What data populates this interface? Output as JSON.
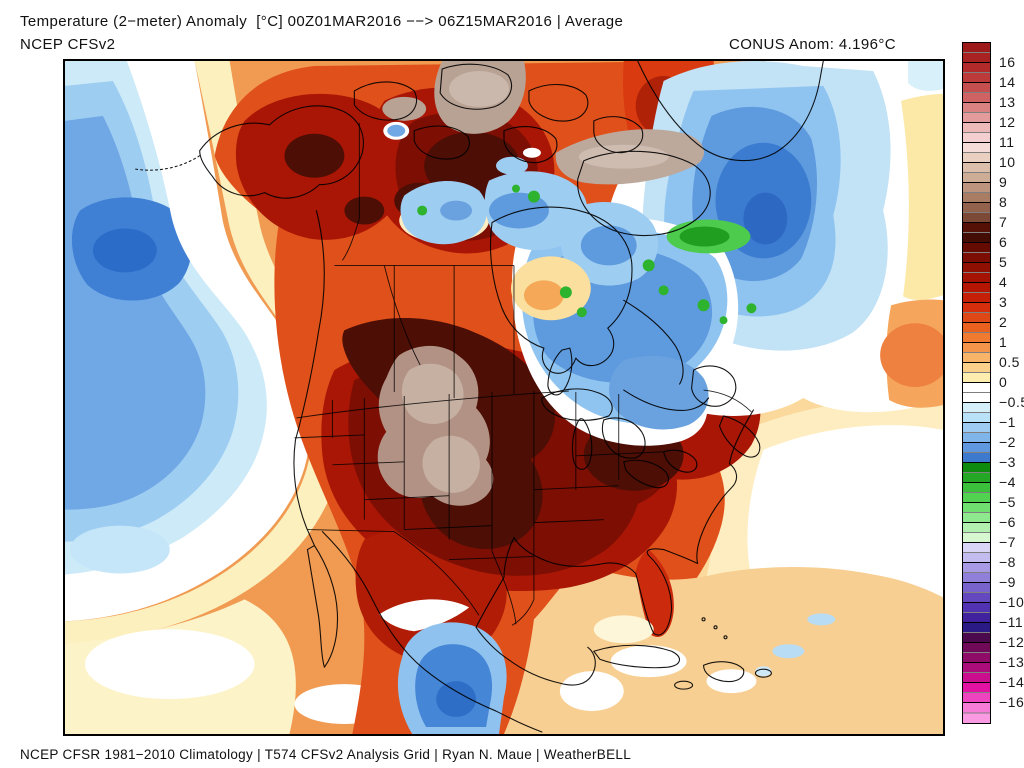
{
  "header": {
    "title": "Temperature (2−meter) Anomaly  [°C] 00Z01MAR2016 −−> 06Z15MAR2016 | Average",
    "model": "NCEP CFSv2",
    "conus_anomaly": "CONUS Anom: 4.196°C"
  },
  "footer": {
    "credits": "NCEP CFSR 1981−2010 Climatology | T574 CFSv2 Analysis Grid | Ryan N. Maue | WeatherBELL"
  },
  "colorbar": {
    "unit": "°C",
    "cells": [
      {
        "label": "16",
        "a": "#9d1a1a",
        "b": "#a82222"
      },
      {
        "label": "14",
        "a": "#b22a2a",
        "b": "#bc3a3a"
      },
      {
        "label": "13",
        "a": "#c54e4e",
        "b": "#cf6363"
      },
      {
        "label": "12",
        "a": "#da8282",
        "b": "#e49b9b"
      },
      {
        "label": "11",
        "a": "#edb9b9",
        "b": "#f3cfcf"
      },
      {
        "label": "10",
        "a": "#f5dcd8",
        "b": "#e9d0c0"
      },
      {
        "label": "9",
        "a": "#dcbfab",
        "b": "#cead97"
      },
      {
        "label": "8",
        "a": "#bd947e",
        "b": "#a97c64"
      },
      {
        "label": "7",
        "a": "#93624c",
        "b": "#7b4936"
      },
      {
        "label": "6",
        "a": "#551106",
        "b": "#430c04"
      },
      {
        "label": "5",
        "a": "#650b02",
        "b": "#7c0d03"
      },
      {
        "label": "4",
        "a": "#8f0f03",
        "b": "#a31203"
      },
      {
        "label": "3",
        "a": "#b51604",
        "b": "#c52007"
      },
      {
        "label": "2",
        "a": "#d42e0c",
        "b": "#de4716"
      },
      {
        "label": "1",
        "a": "#e9601f",
        "b": "#ef7a30"
      },
      {
        "label": "0.5",
        "a": "#f3944a",
        "b": "#f8b468"
      },
      {
        "label": "0",
        "a": "#fbd08a",
        "b": "#fdeeb0"
      },
      {
        "label": "−0.5",
        "a": "#ffffff",
        "b": "#ffffff"
      },
      {
        "label": "−1",
        "a": "#d4effa",
        "b": "#b9e1f7"
      },
      {
        "label": "−2",
        "a": "#9dcbf1",
        "b": "#80b5ea"
      },
      {
        "label": "−3",
        "a": "#5f98de",
        "b": "#3d7ace"
      },
      {
        "label": "−4",
        "a": "#0e8b0e",
        "b": "#24a724"
      },
      {
        "label": "−5",
        "a": "#3ac03a",
        "b": "#51d251"
      },
      {
        "label": "−6",
        "a": "#6fdf6f",
        "b": "#8ee88e"
      },
      {
        "label": "−7",
        "a": "#b2f0b0",
        "b": "#d7f7d0"
      },
      {
        "label": "−8",
        "a": "#d8d5f6",
        "b": "#c2bcef"
      },
      {
        "label": "−9",
        "a": "#a89ae5",
        "b": "#9080d9"
      },
      {
        "label": "−10",
        "a": "#7862cc",
        "b": "#6348c0"
      },
      {
        "label": "−11",
        "a": "#5132b2",
        "b": "#40229e"
      },
      {
        "label": "−12",
        "a": "#2a1a86",
        "b": "#4c0a4e"
      },
      {
        "label": "−13",
        "a": "#700a58",
        "b": "#8e0c68"
      },
      {
        "label": "−14",
        "a": "#ac0c7a",
        "b": "#ca0e8e"
      },
      {
        "label": "−16",
        "a": "#e312a2",
        "b": "#ee44c0"
      },
      {
        "label": null,
        "a": "#f67cd8",
        "b": "#f99ae2"
      }
    ]
  }
}
